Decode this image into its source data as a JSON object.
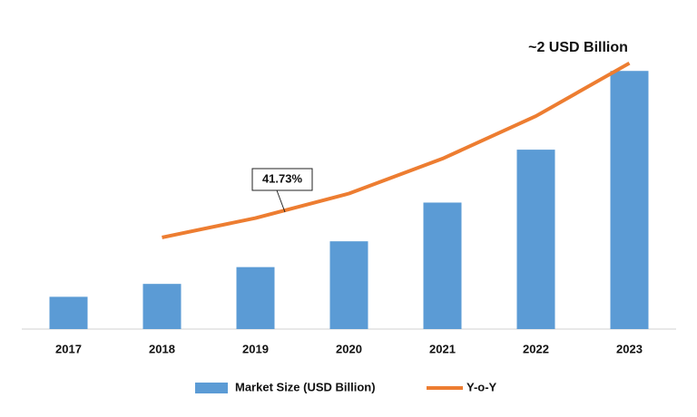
{
  "chart_data": {
    "type": "bar",
    "categories": [
      "2017",
      "2018",
      "2019",
      "2020",
      "2021",
      "2022",
      "2023"
    ],
    "series": [
      {
        "name": "Market Size (USD Billion)",
        "color": "#5b9bd5",
        "values": [
          0.25,
          0.35,
          0.48,
          0.68,
          0.98,
          1.39,
          2.0
        ]
      },
      {
        "name": "Y-o-Y",
        "color": "#ed7d31",
        "type": "line",
        "values": [
          null,
          0.71,
          0.86,
          1.05,
          1.32,
          1.65,
          2.06
        ]
      }
    ],
    "ylim": [
      0,
      2.1
    ],
    "annotations": [
      "41.73%",
      "~2 USD Billion"
    ],
    "legend": "bottom"
  }
}
